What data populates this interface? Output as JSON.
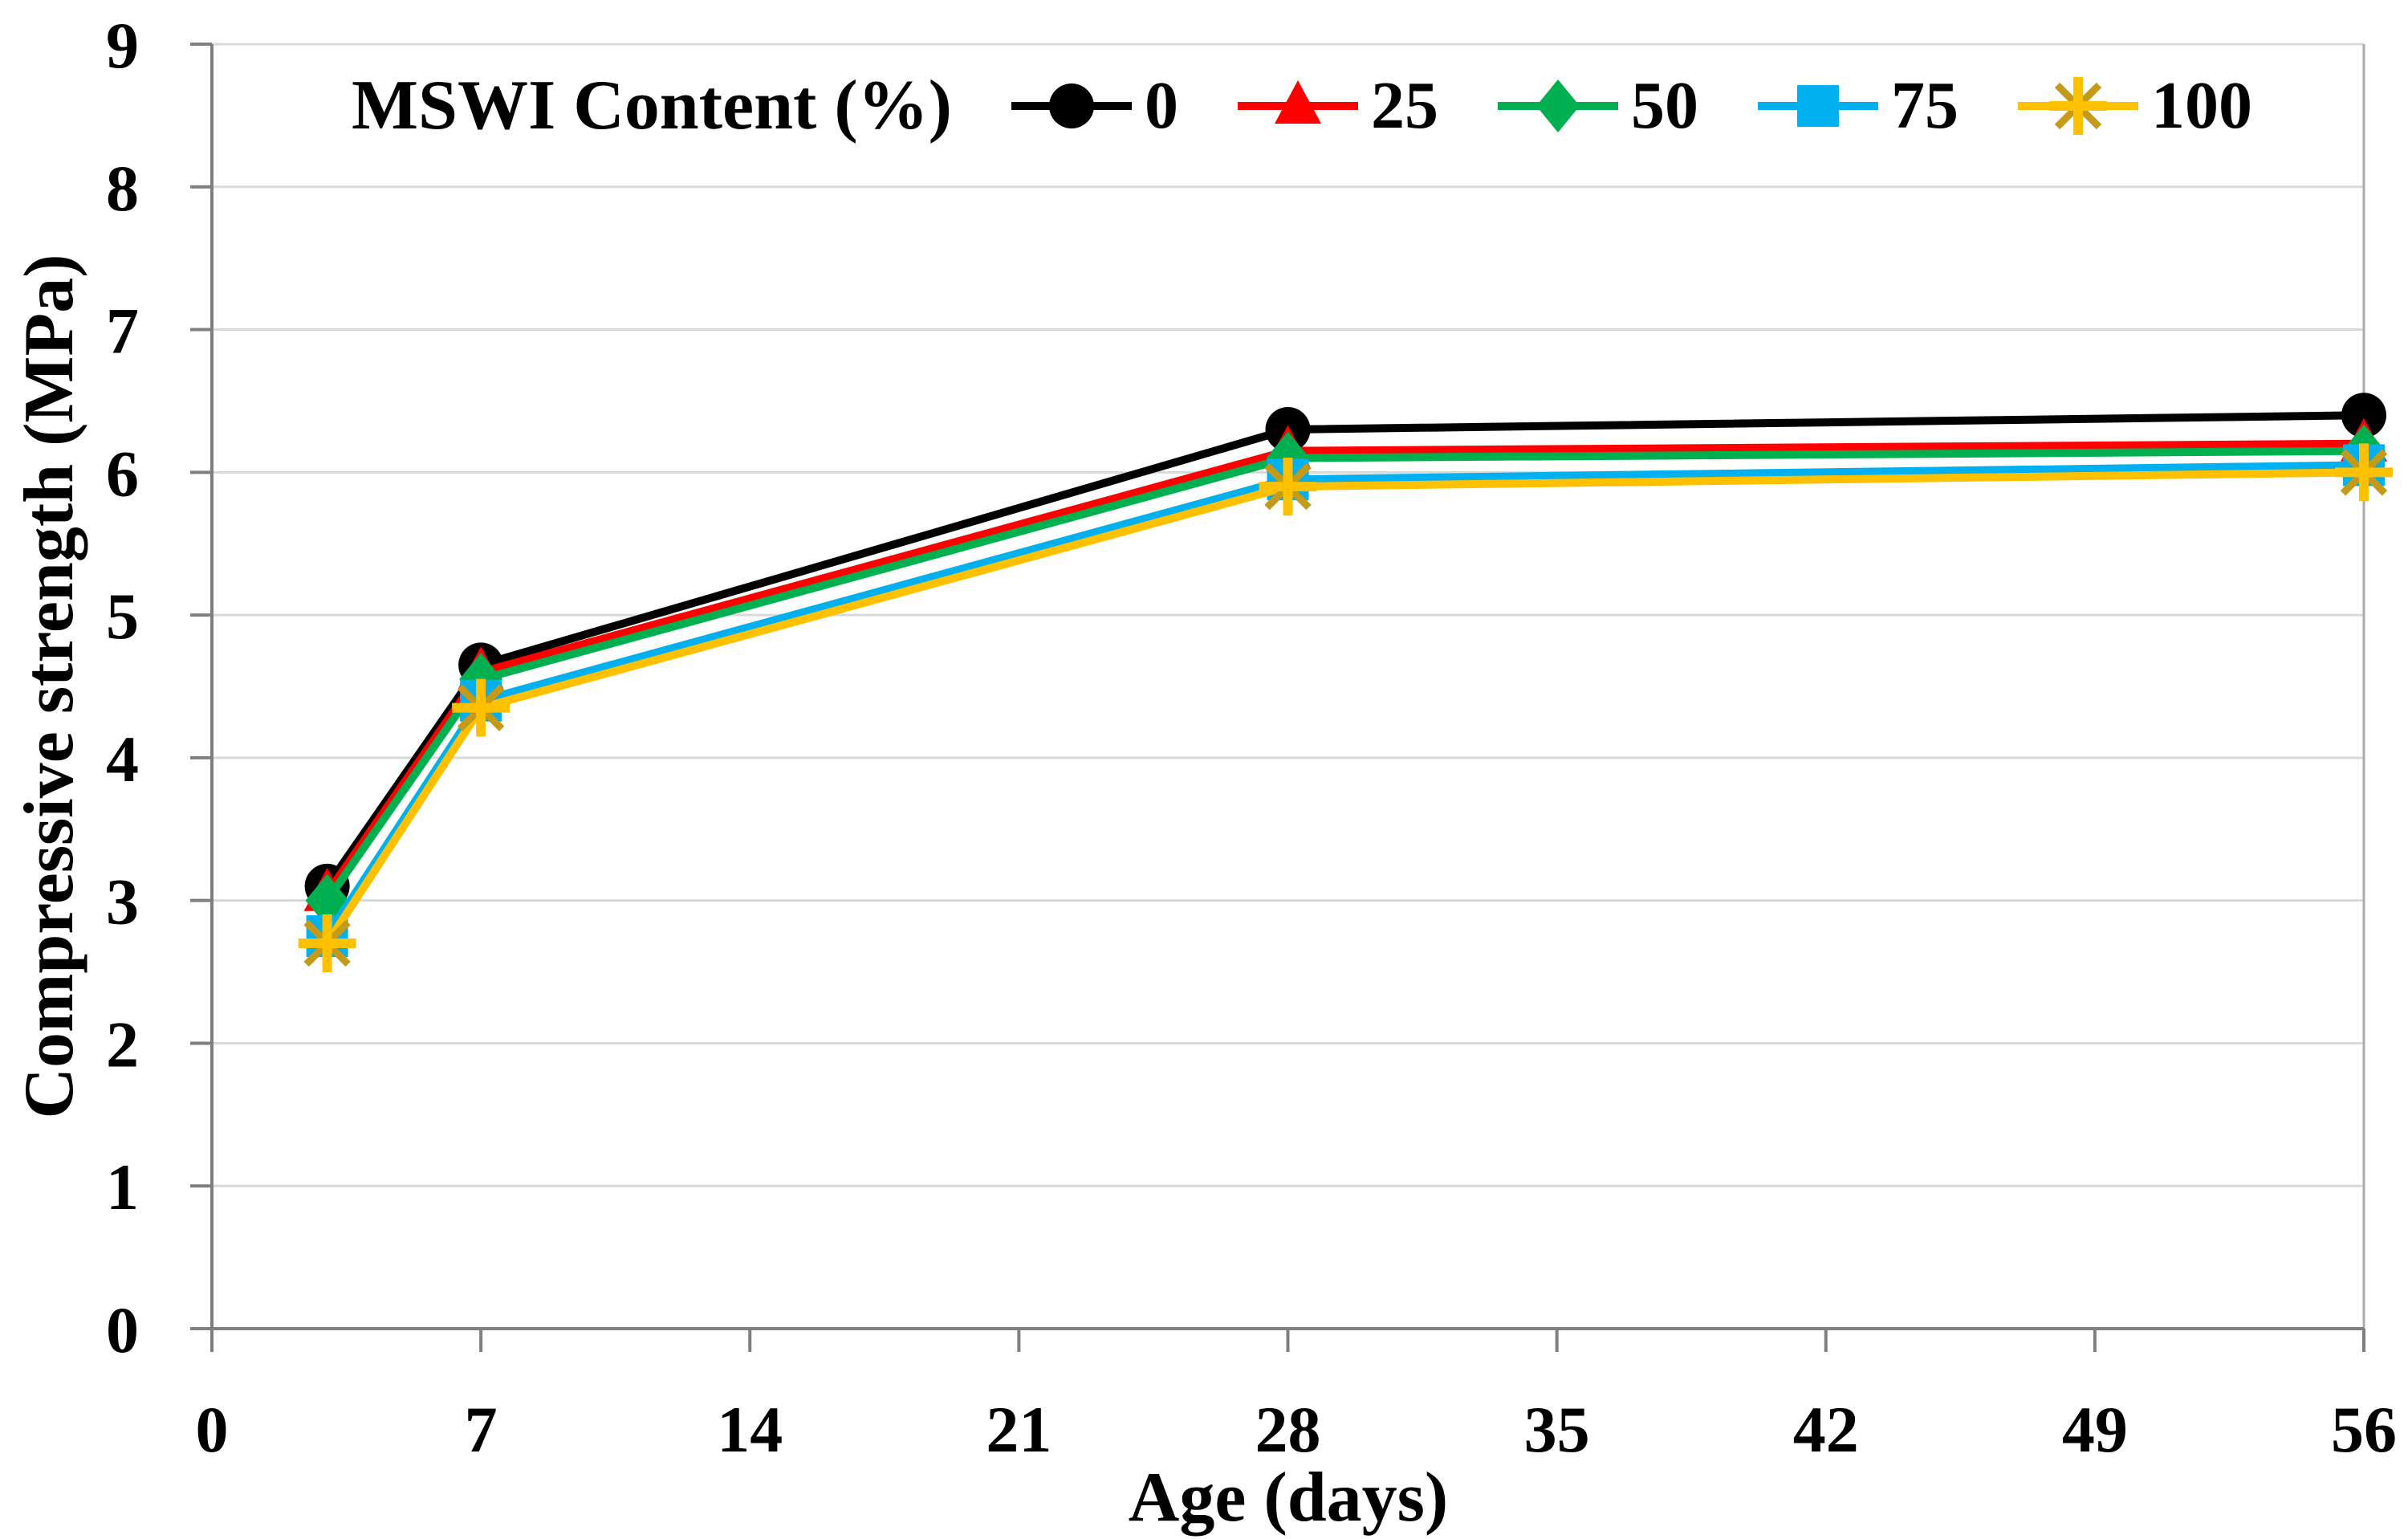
{
  "figure": {
    "background": "#FFFFFF",
    "text_color": "#000000",
    "axis_color": "#7F7F7F",
    "grid_color": "#D9D9D9",
    "border_color": "#ABABAB"
  },
  "chart_data": {
    "type": "line",
    "title": "",
    "legend_title": "MSWI Content (%)",
    "legend_position": "top",
    "xlabel": "Age (days)",
    "ylabel": "Compressive strength (MPa)",
    "xlim": [
      0,
      56
    ],
    "ylim": [
      0,
      9
    ],
    "x_ticks": [
      0,
      7,
      14,
      21,
      28,
      35,
      42,
      49,
      56
    ],
    "y_ticks": [
      0,
      1,
      2,
      3,
      4,
      5,
      6,
      7,
      8,
      9
    ],
    "grid": "horizontal",
    "x": [
      3,
      7,
      28,
      56
    ],
    "series": [
      {
        "name": "0",
        "color": "#000000",
        "marker": "circle",
        "values": [
          3.1,
          4.65,
          6.3,
          6.4
        ]
      },
      {
        "name": "25",
        "color": "#FF0000",
        "marker": "triangle",
        "values": [
          3.05,
          4.6,
          6.15,
          6.2
        ]
      },
      {
        "name": "50",
        "color": "#00B050",
        "marker": "diamond",
        "values": [
          3.0,
          4.55,
          6.1,
          6.15
        ]
      },
      {
        "name": "75",
        "color": "#00B0F0",
        "marker": "square",
        "values": [
          2.75,
          4.4,
          5.95,
          6.05
        ]
      },
      {
        "name": "100",
        "color": "#FFC000",
        "marker": "asterisk",
        "values": [
          2.7,
          4.35,
          5.9,
          6.0
        ]
      }
    ]
  }
}
